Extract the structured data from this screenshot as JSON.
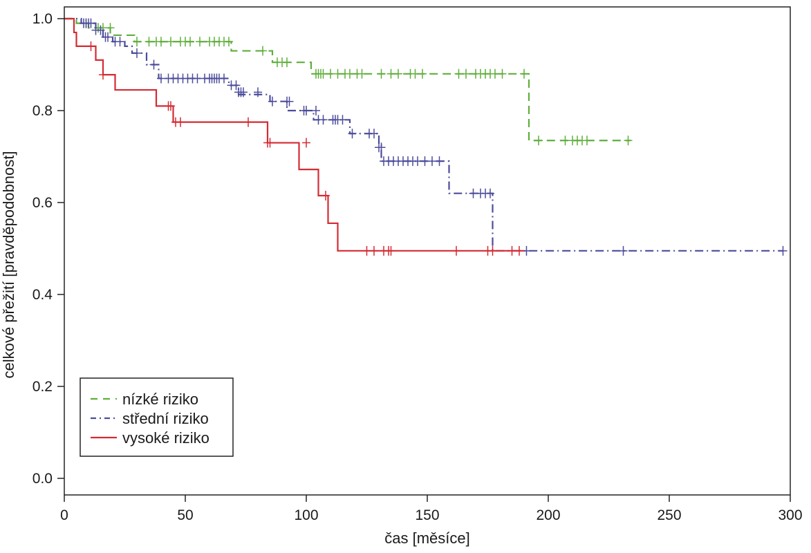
{
  "chart_data": {
    "type": "line",
    "subtype": "kaplan-meier-step",
    "title": "",
    "xlabel": "čas [měsíce]",
    "ylabel": "celkové přežití [pravděpodobnost]",
    "xlim": [
      0,
      300
    ],
    "ylim": [
      0,
      1
    ],
    "x_ticks": [
      "0",
      "50",
      "100",
      "150",
      "200",
      "250",
      "300"
    ],
    "y_ticks": [
      "0.0",
      "0.2",
      "0.4",
      "0.6",
      "0.8",
      "1.0"
    ],
    "grid": false,
    "legend_position": "bottom-left",
    "series": [
      {
        "name": "nízké riziko",
        "color": "#5fae3b",
        "dash": "dashed",
        "steps": [
          [
            0,
            1.0
          ],
          [
            5,
            0.99
          ],
          [
            10,
            0.98
          ],
          [
            19,
            0.964
          ],
          [
            29,
            0.95
          ],
          [
            69,
            0.93
          ],
          [
            86,
            0.905
          ],
          [
            102,
            0.88
          ],
          [
            192,
            0.735
          ],
          [
            234,
            0.735
          ]
        ],
        "censored": [
          [
            9,
            0.99
          ],
          [
            14,
            0.98
          ],
          [
            16,
            0.98
          ],
          [
            19,
            0.98
          ],
          [
            30,
            0.95
          ],
          [
            35,
            0.95
          ],
          [
            38,
            0.95
          ],
          [
            40,
            0.95
          ],
          [
            44,
            0.95
          ],
          [
            48,
            0.95
          ],
          [
            50,
            0.95
          ],
          [
            52,
            0.95
          ],
          [
            56,
            0.95
          ],
          [
            60,
            0.95
          ],
          [
            62,
            0.95
          ],
          [
            64,
            0.95
          ],
          [
            66,
            0.95
          ],
          [
            68,
            0.95
          ],
          [
            82,
            0.93
          ],
          [
            88,
            0.905
          ],
          [
            90,
            0.905
          ],
          [
            92,
            0.905
          ],
          [
            104,
            0.88
          ],
          [
            105,
            0.88
          ],
          [
            106,
            0.88
          ],
          [
            107,
            0.88
          ],
          [
            110,
            0.88
          ],
          [
            113,
            0.88
          ],
          [
            116,
            0.88
          ],
          [
            118,
            0.88
          ],
          [
            121,
            0.88
          ],
          [
            123,
            0.88
          ],
          [
            131,
            0.88
          ],
          [
            135,
            0.88
          ],
          [
            138,
            0.88
          ],
          [
            143,
            0.88
          ],
          [
            145,
            0.88
          ],
          [
            148,
            0.88
          ],
          [
            163,
            0.88
          ],
          [
            166,
            0.88
          ],
          [
            170,
            0.88
          ],
          [
            172,
            0.88
          ],
          [
            174,
            0.88
          ],
          [
            176,
            0.88
          ],
          [
            178,
            0.88
          ],
          [
            181,
            0.88
          ],
          [
            190,
            0.88
          ],
          [
            196,
            0.735
          ],
          [
            207,
            0.735
          ],
          [
            210,
            0.735
          ],
          [
            212,
            0.735
          ],
          [
            214,
            0.735
          ],
          [
            216,
            0.735
          ],
          [
            233,
            0.735
          ]
        ]
      },
      {
        "name": "střední riziko",
        "color": "#4b4b9b",
        "dash": "dashdot",
        "steps": [
          [
            0,
            1.0
          ],
          [
            7,
            0.99
          ],
          [
            13,
            0.975
          ],
          [
            16,
            0.96
          ],
          [
            20,
            0.95
          ],
          [
            25,
            0.94
          ],
          [
            28,
            0.925
          ],
          [
            34,
            0.9
          ],
          [
            39,
            0.87
          ],
          [
            68,
            0.855
          ],
          [
            72,
            0.835
          ],
          [
            85,
            0.82
          ],
          [
            92,
            0.8
          ],
          [
            103,
            0.78
          ],
          [
            118,
            0.75
          ],
          [
            130,
            0.725
          ],
          [
            131,
            0.69
          ],
          [
            159,
            0.62
          ],
          [
            177,
            0.495
          ],
          [
            297,
            0.495
          ]
        ],
        "censored": [
          [
            8,
            0.99
          ],
          [
            9,
            0.99
          ],
          [
            10,
            0.99
          ],
          [
            11,
            0.99
          ],
          [
            13,
            0.975
          ],
          [
            15,
            0.975
          ],
          [
            17,
            0.96
          ],
          [
            18,
            0.96
          ],
          [
            21,
            0.95
          ],
          [
            23,
            0.95
          ],
          [
            30,
            0.925
          ],
          [
            37,
            0.9
          ],
          [
            40,
            0.87
          ],
          [
            43,
            0.87
          ],
          [
            45,
            0.87
          ],
          [
            47,
            0.87
          ],
          [
            49,
            0.87
          ],
          [
            51,
            0.87
          ],
          [
            53,
            0.87
          ],
          [
            55,
            0.87
          ],
          [
            58,
            0.87
          ],
          [
            60,
            0.87
          ],
          [
            61,
            0.87
          ],
          [
            62,
            0.87
          ],
          [
            63,
            0.87
          ],
          [
            64,
            0.87
          ],
          [
            66,
            0.87
          ],
          [
            69,
            0.855
          ],
          [
            71,
            0.855
          ],
          [
            72,
            0.84
          ],
          [
            73,
            0.84
          ],
          [
            74,
            0.84
          ],
          [
            80,
            0.84
          ],
          [
            86,
            0.82
          ],
          [
            92,
            0.82
          ],
          [
            93,
            0.82
          ],
          [
            99,
            0.8
          ],
          [
            100,
            0.8
          ],
          [
            104,
            0.8
          ],
          [
            105,
            0.78
          ],
          [
            107,
            0.78
          ],
          [
            111,
            0.78
          ],
          [
            112,
            0.78
          ],
          [
            113,
            0.78
          ],
          [
            115,
            0.78
          ],
          [
            119,
            0.75
          ],
          [
            126,
            0.75
          ],
          [
            128,
            0.75
          ],
          [
            130,
            0.72
          ],
          [
            131,
            0.72
          ],
          [
            132,
            0.69
          ],
          [
            134,
            0.69
          ],
          [
            136,
            0.69
          ],
          [
            138,
            0.69
          ],
          [
            140,
            0.69
          ],
          [
            142,
            0.69
          ],
          [
            144,
            0.69
          ],
          [
            146,
            0.69
          ],
          [
            149,
            0.69
          ],
          [
            152,
            0.69
          ],
          [
            155,
            0.69
          ],
          [
            169,
            0.62
          ],
          [
            172,
            0.62
          ],
          [
            174,
            0.62
          ],
          [
            176,
            0.62
          ],
          [
            191,
            0.495
          ],
          [
            231,
            0.495
          ],
          [
            297,
            0.495
          ]
        ]
      },
      {
        "name": "vysoké riziko",
        "color": "#d42b32",
        "dash": "solid",
        "steps": [
          [
            0,
            1.0
          ],
          [
            4,
            0.97
          ],
          [
            5,
            0.94
          ],
          [
            13,
            0.91
          ],
          [
            16,
            0.878
          ],
          [
            21,
            0.845
          ],
          [
            38,
            0.81
          ],
          [
            45,
            0.775
          ],
          [
            84,
            0.73
          ],
          [
            97,
            0.672
          ],
          [
            105,
            0.615
          ],
          [
            109,
            0.555
          ],
          [
            113,
            0.495
          ],
          [
            190,
            0.495
          ]
        ],
        "censored": [
          [
            11,
            0.94
          ],
          [
            16,
            0.878
          ],
          [
            43,
            0.81
          ],
          [
            44,
            0.81
          ],
          [
            46,
            0.775
          ],
          [
            48,
            0.775
          ],
          [
            76,
            0.775
          ],
          [
            84,
            0.73
          ],
          [
            85,
            0.73
          ],
          [
            100,
            0.73
          ],
          [
            108,
            0.615
          ],
          [
            125,
            0.495
          ],
          [
            128,
            0.495
          ],
          [
            132,
            0.495
          ],
          [
            134,
            0.495
          ],
          [
            135,
            0.495
          ],
          [
            162,
            0.495
          ],
          [
            175,
            0.495
          ],
          [
            177,
            0.495
          ],
          [
            185,
            0.495
          ],
          [
            188,
            0.495
          ]
        ]
      }
    ]
  }
}
